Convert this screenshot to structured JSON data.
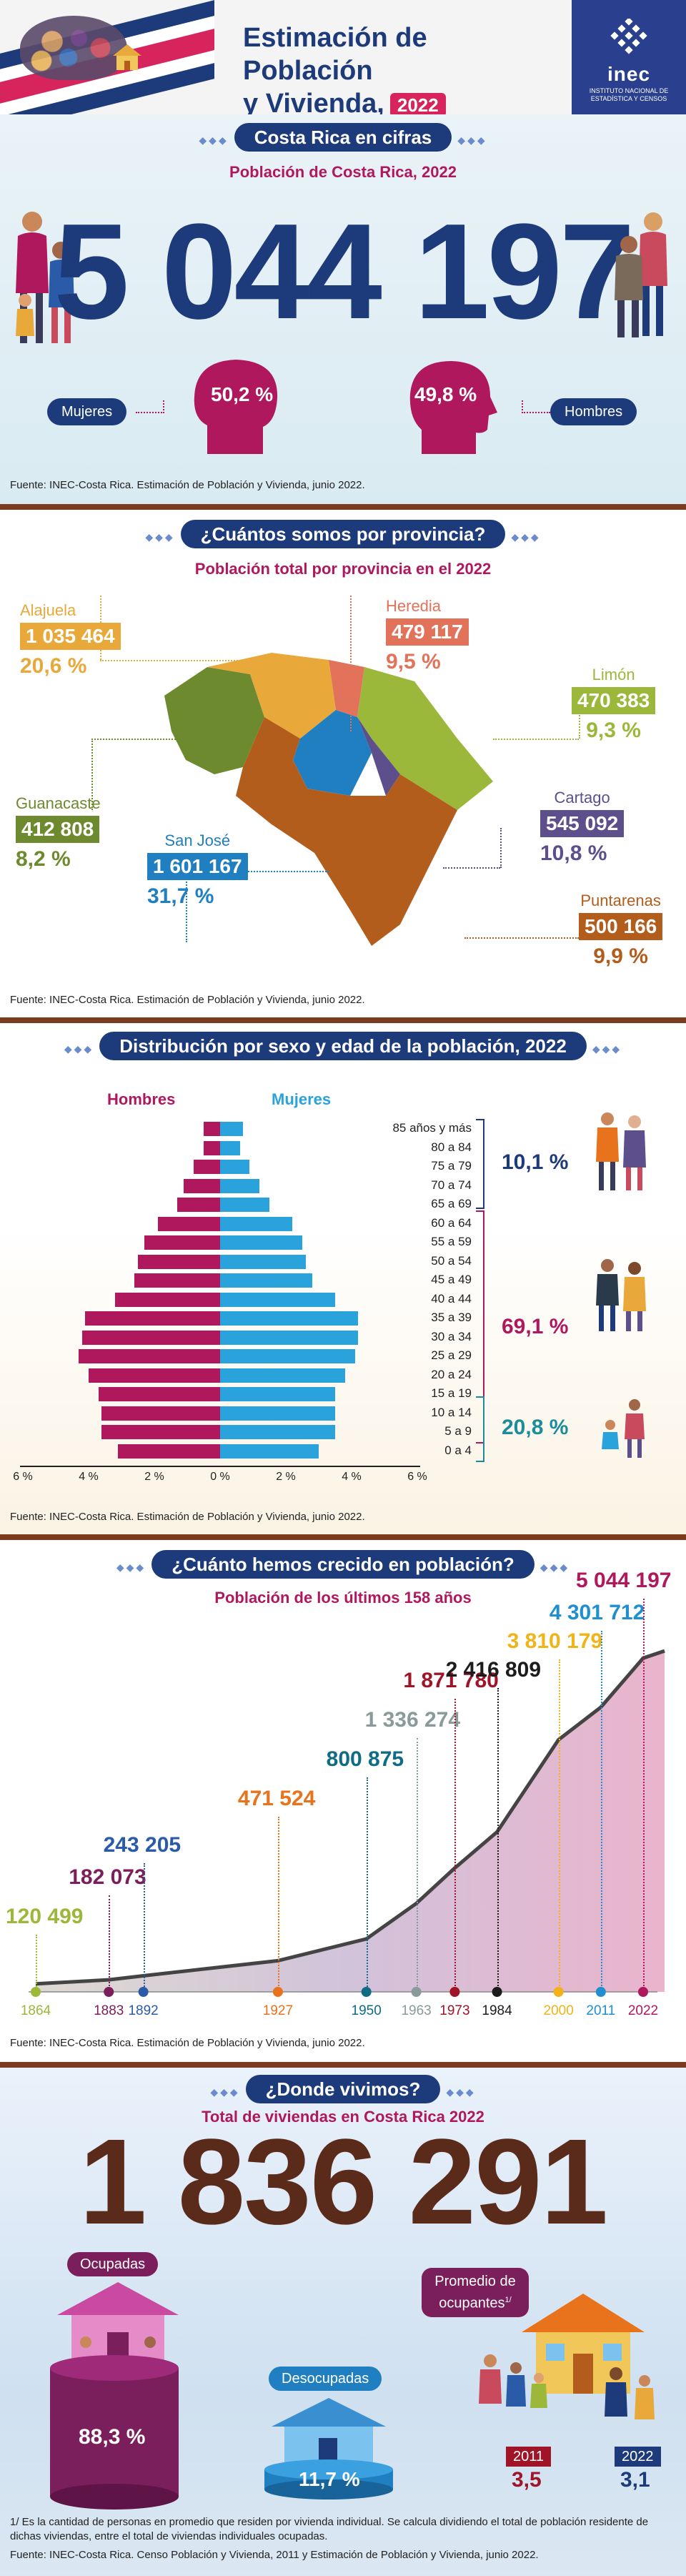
{
  "header": {
    "title_line1": "Estimación de Población",
    "title_line2": "y Vivienda,",
    "year": "2022",
    "logo_name": "inec",
    "logo_sub": "INSTITUTO NACIONAL DE ESTADÍSTICA Y CENSOS",
    "colors": {
      "flag_blue": "#1d3a7a",
      "flag_red": "#d8245c",
      "logo_bg": "#2a3f8d"
    }
  },
  "cifras": {
    "title": "Costa Rica en cifras",
    "subtitle": "Población de Costa Rica, 2022",
    "population": "5 044 197",
    "women_pct": "50,2 %",
    "men_pct": "49,8 %",
    "women_label": "Mujeres",
    "men_label": "Hombres",
    "source": "Fuente: INEC-Costa Rica. Estimación de Población y Vivienda, junio 2022."
  },
  "provincias": {
    "title": "¿Cuántos somos por provincia?",
    "subtitle": "Población total por provincia en el 2022",
    "items": [
      {
        "name": "Alajuela",
        "value": "1 035 464",
        "pct": "20,6 %",
        "color": "#e8a83a"
      },
      {
        "name": "Heredia",
        "value": "479 117",
        "pct": "9,5 %",
        "color": "#e2725a"
      },
      {
        "name": "Limón",
        "value": "470 383",
        "pct": "9,3 %",
        "color": "#9bb83a"
      },
      {
        "name": "Guanacaste",
        "value": "412 808",
        "pct": "8,2 %",
        "color": "#6e8a2e"
      },
      {
        "name": "Cartago",
        "value": "545 092",
        "pct": "10,8 %",
        "color": "#5c4f8c"
      },
      {
        "name": "San José",
        "value": "1 601 167",
        "pct": "31,7 %",
        "color": "#1f7fc1"
      },
      {
        "name": "Puntarenas",
        "value": "500 166",
        "pct": "9,9 %",
        "color": "#b35d1c"
      }
    ],
    "source": "Fuente: INEC-Costa Rica. Estimación de Población y Vivienda, junio 2022."
  },
  "piramide": {
    "title": "Distribución por sexo y edad de la población, 2022",
    "men_label": "Hombres",
    "women_label": "Mujeres",
    "groups": [
      {
        "range": "85 años y más",
        "men": 0.5,
        "women": 0.7
      },
      {
        "range": "80 a 84",
        "men": 0.5,
        "women": 0.6
      },
      {
        "range": "75 a 79",
        "men": 0.8,
        "women": 0.9
      },
      {
        "range": "70 a 74",
        "men": 1.1,
        "women": 1.2
      },
      {
        "range": "65 a 69",
        "men": 1.3,
        "women": 1.5
      },
      {
        "range": "60 a 64",
        "men": 1.9,
        "women": 2.2
      },
      {
        "range": "55 a 59",
        "men": 2.3,
        "women": 2.5
      },
      {
        "range": "50 a 54",
        "men": 2.5,
        "women": 2.6
      },
      {
        "range": "45 a 49",
        "men": 2.6,
        "women": 2.8
      },
      {
        "range": "40 a 44",
        "men": 3.2,
        "women": 3.5
      },
      {
        "range": "35 a 39",
        "men": 4.1,
        "women": 4.2
      },
      {
        "range": "30 a 34",
        "men": 4.2,
        "women": 4.2
      },
      {
        "range": "25 a 29",
        "men": 4.3,
        "women": 4.1
      },
      {
        "range": "20 a 24",
        "men": 4.0,
        "women": 3.8
      },
      {
        "range": "15 a 19",
        "men": 3.7,
        "women": 3.5
      },
      {
        "range": "10 a 14",
        "men": 3.6,
        "women": 3.5
      },
      {
        "range": "5 a 9",
        "men": 3.6,
        "women": 3.5
      },
      {
        "range": "0 a 4",
        "men": 3.1,
        "women": 3.0
      }
    ],
    "brackets": [
      {
        "pct": "10,1 %",
        "color": "#1d3a7a"
      },
      {
        "pct": "69,1 %",
        "color": "#b0185e"
      },
      {
        "pct": "20,8 %",
        "color": "#1a8c9c"
      }
    ],
    "axis_ticks": [
      "6 %",
      "4 %",
      "2 %",
      "0 %",
      "2 %",
      "4 %",
      "6 %"
    ],
    "colors": {
      "men": "#b0185e",
      "women": "#2aa3dc"
    },
    "source": "Fuente: INEC-Costa Rica. Estimación de Población y Vivienda, junio 2022."
  },
  "crecimiento": {
    "title": "¿Cuánto hemos crecido en población?",
    "subtitle": "Población de los últimos 158 años",
    "points": [
      {
        "year": "1864",
        "value": "120 499",
        "color": "#9bb83a"
      },
      {
        "year": "1883",
        "value": "182 073",
        "color": "#7a1e5c"
      },
      {
        "year": "1892",
        "value": "243 205",
        "color": "#2a5ba8"
      },
      {
        "year": "1927",
        "value": "471 524",
        "color": "#e8731c"
      },
      {
        "year": "1950",
        "value": "800 875",
        "color": "#0f6c84"
      },
      {
        "year": "1963",
        "value": "1 336 274",
        "color": "#8a9a9a"
      },
      {
        "year": "1973",
        "value": "1 871 780",
        "color": "#a01428"
      },
      {
        "year": "1984",
        "value": "2 416 809",
        "color": "#1c1c1c"
      },
      {
        "year": "2000",
        "value": "3 810 179",
        "color": "#f0b418"
      },
      {
        "year": "2011",
        "value": "4 301 712",
        "color": "#1f8fd0"
      },
      {
        "year": "2022",
        "value": "5 044 197",
        "color": "#b0185e"
      }
    ],
    "source": "Fuente: INEC-Costa Rica. Estimación de Población y Vivienda, junio 2022."
  },
  "viviendas": {
    "title": "¿Donde vivimos?",
    "subtitle": "Total de viviendas en Costa Rica 2022",
    "total": "1 836 291",
    "ocupadas_label": "Ocupadas",
    "ocupadas_pct": "88,3 %",
    "desocupadas_label": "Desocupadas",
    "desocupadas_pct": "11,7 %",
    "promedio_label": "Promedio de ocupantes",
    "promedio_sup": "1/",
    "prom_2011_year": "2011",
    "prom_2011_value": "3,5",
    "prom_2022_year": "2022",
    "prom_2022_value": "3,1",
    "note": "1/ Es la cantidad de personas en promedio que residen por vivienda individual. Se calcula dividiendo el total de población residente de dichas viviendas, entre el total de viviendas individuales ocupadas.",
    "source": "Fuente: INEC-Costa Rica. Censo Población y Vivienda, 2011 y Estimación de Población y Vivienda, junio 2022."
  }
}
